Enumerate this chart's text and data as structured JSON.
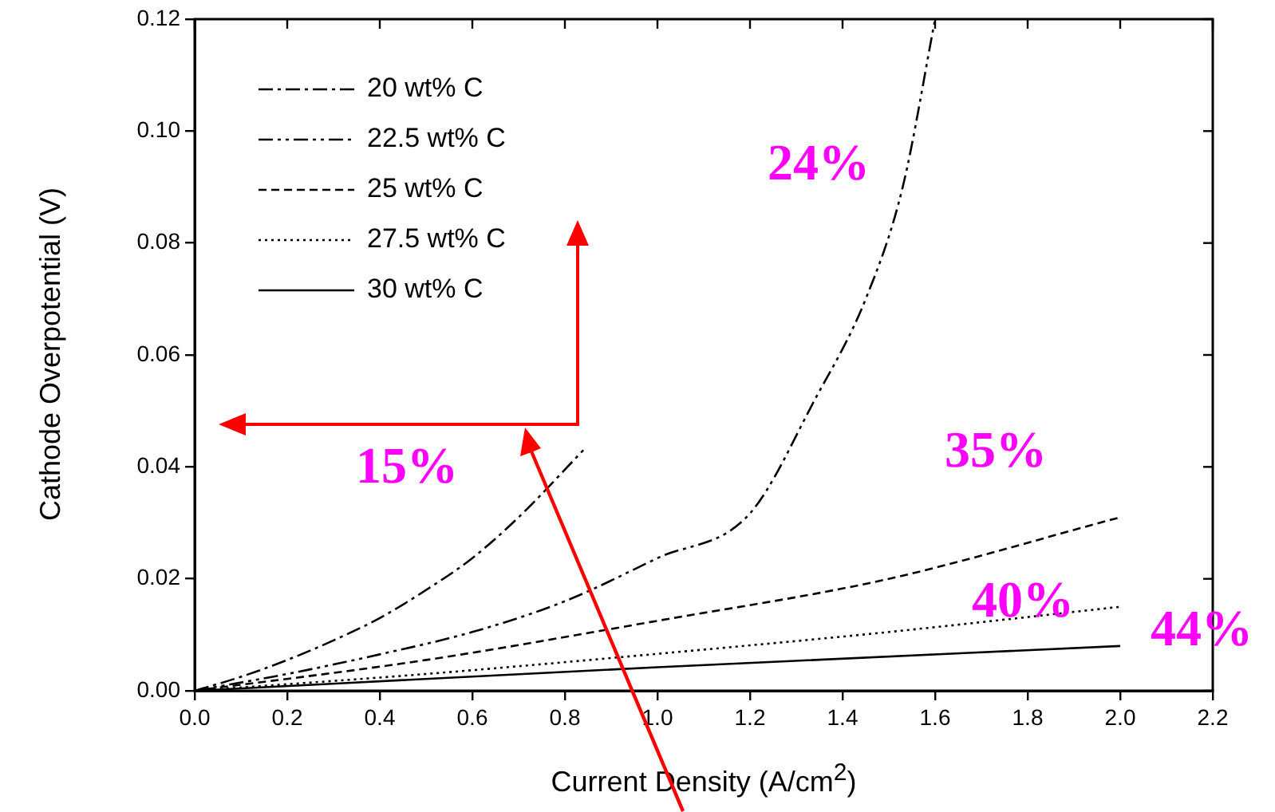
{
  "chart_data": {
    "type": "line",
    "xlabel": "Current Density (A/cm$^{2}$)",
    "ylabel": "Cathode Overpotential (V)",
    "xlim": [
      0,
      2.2
    ],
    "ylim": [
      0,
      0.12
    ],
    "xticks": [
      {
        "value": 0,
        "label": "0.0"
      },
      {
        "value": 0.2,
        "label": "0.2"
      },
      {
        "value": 0.4,
        "label": "0.4"
      },
      {
        "value": 0.6,
        "label": "0.6"
      },
      {
        "value": 0.8,
        "label": "0.8"
      },
      {
        "value": 1,
        "label": "1.0"
      },
      {
        "value": 1.2,
        "label": "1.2"
      },
      {
        "value": 1.4,
        "label": "1.4"
      },
      {
        "value": 1.6,
        "label": "1.6"
      },
      {
        "value": 1.8,
        "label": "1.8"
      },
      {
        "value": 2,
        "label": "2.0"
      },
      {
        "value": 2.2,
        "label": "2.2"
      }
    ],
    "yticks": [
      {
        "value": 0,
        "label": "0.00"
      },
      {
        "value": 0.02,
        "label": "0.02"
      },
      {
        "value": 0.04,
        "label": "0.04"
      },
      {
        "value": 0.06,
        "label": "0.06"
      },
      {
        "value": 0.08,
        "label": "0.08"
      },
      {
        "value": 0.1,
        "label": "0.10"
      },
      {
        "value": 0.12,
        "label": "0.12"
      }
    ],
    "grid": false,
    "legend": "top left",
    "marker": "none",
    "series": [
      {
        "name": "20 wt% C",
        "color": "#000000",
        "line_style": "dashdot",
        "x": [
          0,
          0.1,
          0.2,
          0.3,
          0.4,
          0.5,
          0.6,
          0.7,
          0.84
        ],
        "values": [
          0,
          0.0025,
          0.0055,
          0.009,
          0.013,
          0.018,
          0.0237,
          0.031,
          0.043
        ]
      },
      {
        "name": "22.5 wt% C",
        "color": "#000000",
        "line_style": "dashdotdot",
        "x": [
          0,
          0.2,
          0.4,
          0.6,
          0.8,
          1.0,
          1.2,
          1.34,
          1.45,
          1.53,
          1.6
        ],
        "values": [
          0,
          0.003,
          0.0065,
          0.0105,
          0.016,
          0.0237,
          0.0317,
          0.052,
          0.07,
          0.09,
          0.12
        ]
      },
      {
        "name": "25 wt% C",
        "color": "#000000",
        "line_style": "dashed",
        "x": [
          0,
          0.5,
          1.0,
          1.5,
          2.0
        ],
        "values": [
          0,
          0.0055,
          0.0125,
          0.02,
          0.031
        ]
      },
      {
        "name": "27.5 wt% C",
        "color": "#000000",
        "line_style": "dotted",
        "x": [
          0,
          0.5,
          1.0,
          1.5,
          2.0
        ],
        "values": [
          0,
          0.003,
          0.0066,
          0.0105,
          0.015
        ]
      },
      {
        "name": "30 wt% C",
        "color": "#000000",
        "line_style": "solid",
        "x": [
          0,
          1.0,
          2.0
        ],
        "values": [
          0,
          0.0042,
          0.008
        ]
      }
    ],
    "annotations": [
      "15%",
      "24%",
      "35%",
      "40%",
      "44%"
    ]
  }
}
